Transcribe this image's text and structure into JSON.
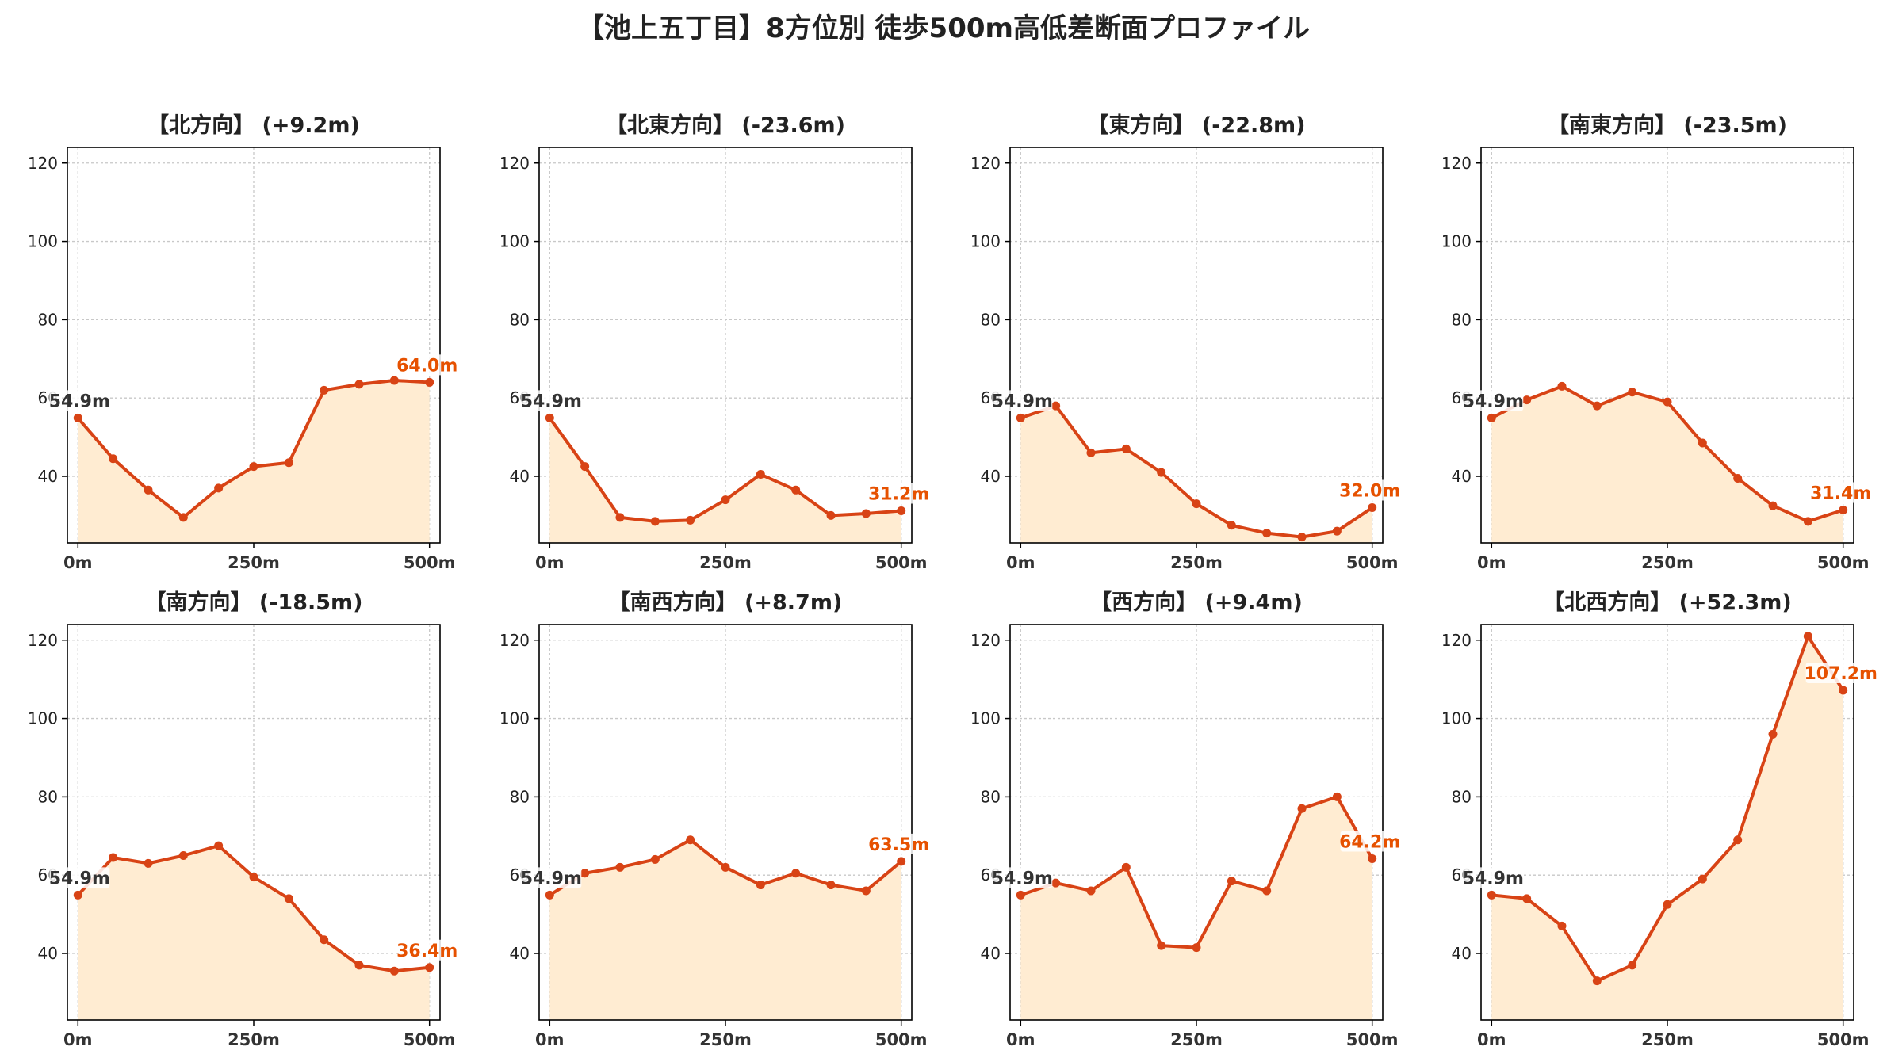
{
  "title": "【池上五丁目】8方位別 徒歩500m高低差断面プロファイル",
  "colors": {
    "line": "#d84315",
    "fill": "#ffecd2",
    "grid": "#c8c8c8",
    "start_label": "#333333",
    "end_label": "#e65100"
  },
  "chart_data": [
    {
      "type": "area",
      "title": "【北方向】 (+9.2m)",
      "x": [
        0,
        50,
        100,
        150,
        200,
        250,
        300,
        350,
        400,
        450,
        500
      ],
      "y": [
        54.9,
        44.5,
        36.5,
        29.5,
        37.0,
        42.5,
        43.5,
        62.0,
        63.5,
        64.5,
        64.0
      ],
      "xticks": [
        "0m",
        "250m",
        "500m"
      ],
      "yticks": [
        40,
        60,
        80,
        100,
        120
      ],
      "ylim": [
        23,
        124
      ],
      "start_label": "54.9m",
      "end_label": "64.0m",
      "grid": true
    },
    {
      "type": "area",
      "title": "【北東方向】 (-23.6m)",
      "x": [
        0,
        50,
        100,
        150,
        200,
        250,
        300,
        350,
        400,
        450,
        500
      ],
      "y": [
        54.9,
        42.5,
        29.5,
        28.5,
        28.8,
        34.0,
        40.5,
        36.5,
        30.0,
        30.5,
        31.2
      ],
      "xticks": [
        "0m",
        "250m",
        "500m"
      ],
      "yticks": [
        40,
        60,
        80,
        100,
        120
      ],
      "ylim": [
        23,
        124
      ],
      "start_label": "54.9m",
      "end_label": "31.2m",
      "grid": true
    },
    {
      "type": "area",
      "title": "【東方向】 (-22.8m)",
      "x": [
        0,
        50,
        100,
        150,
        200,
        250,
        300,
        350,
        400,
        450,
        500
      ],
      "y": [
        54.9,
        58.0,
        46.0,
        47.0,
        41.0,
        33.0,
        27.5,
        25.5,
        24.5,
        26.0,
        32.0
      ],
      "xticks": [
        "0m",
        "250m",
        "500m"
      ],
      "yticks": [
        40,
        60,
        80,
        100,
        120
      ],
      "ylim": [
        23,
        124
      ],
      "start_label": "54.9m",
      "end_label": "32.0m",
      "grid": true
    },
    {
      "type": "area",
      "title": "【南東方向】 (-23.5m)",
      "x": [
        0,
        50,
        100,
        150,
        200,
        250,
        300,
        350,
        400,
        450,
        500
      ],
      "y": [
        54.9,
        59.5,
        63.0,
        58.0,
        61.5,
        59.0,
        48.5,
        39.5,
        32.5,
        28.5,
        31.4
      ],
      "xticks": [
        "0m",
        "250m",
        "500m"
      ],
      "yticks": [
        40,
        60,
        80,
        100,
        120
      ],
      "ylim": [
        23,
        124
      ],
      "start_label": "54.9m",
      "end_label": "31.4m",
      "grid": true
    },
    {
      "type": "area",
      "title": "【南方向】 (-18.5m)",
      "x": [
        0,
        50,
        100,
        150,
        200,
        250,
        300,
        350,
        400,
        450,
        500
      ],
      "y": [
        54.9,
        64.5,
        63.0,
        65.0,
        67.5,
        59.5,
        54.0,
        43.5,
        37.0,
        35.5,
        36.4
      ],
      "xticks": [
        "0m",
        "250m",
        "500m"
      ],
      "yticks": [
        40,
        60,
        80,
        100,
        120
      ],
      "ylim": [
        23,
        124
      ],
      "start_label": "54.9m",
      "end_label": "36.4m",
      "grid": true
    },
    {
      "type": "area",
      "title": "【南西方向】 (+8.7m)",
      "x": [
        0,
        50,
        100,
        150,
        200,
        250,
        300,
        350,
        400,
        450,
        500
      ],
      "y": [
        54.9,
        60.5,
        62.0,
        64.0,
        69.0,
        62.0,
        57.5,
        60.5,
        57.5,
        56.0,
        63.5
      ],
      "xticks": [
        "0m",
        "250m",
        "500m"
      ],
      "yticks": [
        40,
        60,
        80,
        100,
        120
      ],
      "ylim": [
        23,
        124
      ],
      "start_label": "54.9m",
      "end_label": "63.5m",
      "grid": true
    },
    {
      "type": "area",
      "title": "【西方向】 (+9.4m)",
      "x": [
        0,
        50,
        100,
        150,
        200,
        250,
        300,
        350,
        400,
        450,
        500
      ],
      "y": [
        54.9,
        58.0,
        56.0,
        62.0,
        42.0,
        41.5,
        58.5,
        56.0,
        77.0,
        80.0,
        64.2
      ],
      "xticks": [
        "0m",
        "250m",
        "500m"
      ],
      "yticks": [
        40,
        60,
        80,
        100,
        120
      ],
      "ylim": [
        23,
        124
      ],
      "start_label": "54.9m",
      "end_label": "64.2m",
      "grid": true
    },
    {
      "type": "area",
      "title": "【北西方向】 (+52.3m)",
      "x": [
        0,
        50,
        100,
        150,
        200,
        250,
        300,
        350,
        400,
        450,
        500
      ],
      "y": [
        54.9,
        54.0,
        47.0,
        33.0,
        37.0,
        52.5,
        59.0,
        69.0,
        96.0,
        121.0,
        107.2
      ],
      "xticks": [
        "0m",
        "250m",
        "500m"
      ],
      "yticks": [
        40,
        60,
        80,
        100,
        120
      ],
      "ylim": [
        23,
        124
      ],
      "start_label": "54.9m",
      "end_label": "107.2m",
      "grid": true
    }
  ]
}
